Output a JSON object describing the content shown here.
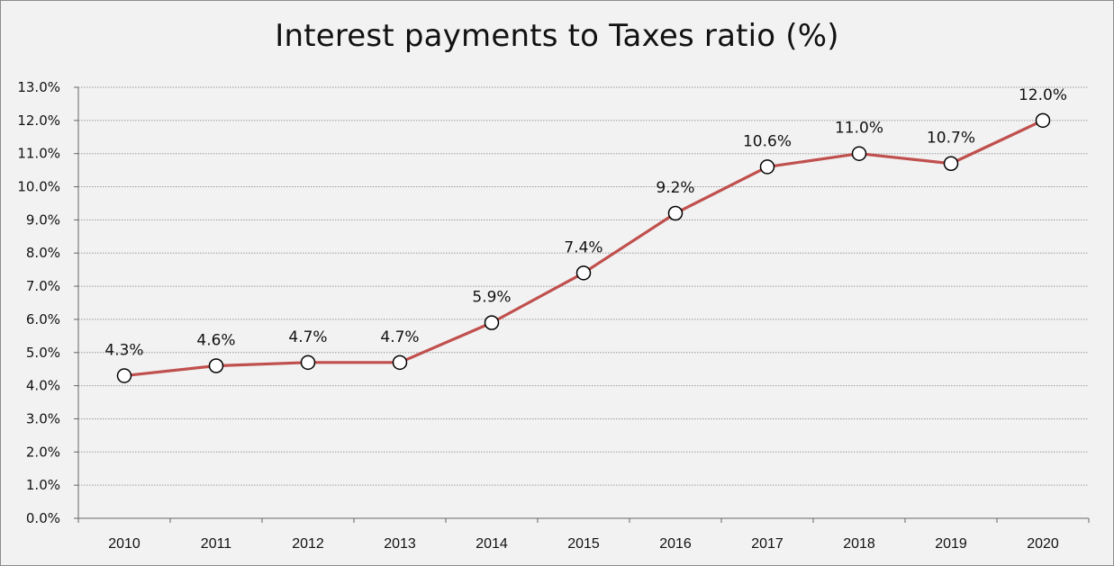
{
  "chart_data": {
    "type": "line",
    "title": "Interest payments to Taxes ratio (%)",
    "xlabel": "",
    "ylabel": "",
    "categories": [
      "2010",
      "2011",
      "2012",
      "2013",
      "2014",
      "2015",
      "2016",
      "2017",
      "2018",
      "2019",
      "2020"
    ],
    "series": [
      {
        "values": [
          4.3,
          4.6,
          4.7,
          4.7,
          5.9,
          7.4,
          9.2,
          10.6,
          11.0,
          10.7,
          12.0
        ],
        "data_labels": [
          "4.3%",
          "4.6%",
          "4.7%",
          "4.7%",
          "5.9%",
          "7.4%",
          "9.2%",
          "10.6%",
          "11.0%",
          "10.7%",
          "12.0%"
        ],
        "color": "#c0504d"
      }
    ],
    "ylim": [
      0,
      13
    ],
    "ytick_values": [
      0,
      1,
      2,
      3,
      4,
      5,
      6,
      7,
      8,
      9,
      10,
      11,
      12,
      13
    ],
    "ytick_labels": [
      "0.0%",
      "1.0%",
      "2.0%",
      "3.0%",
      "4.0%",
      "5.0%",
      "6.0%",
      "7.0%",
      "8.0%",
      "9.0%",
      "10.0%",
      "11.0%",
      "12.0%",
      "13.0%"
    ],
    "grid": true,
    "legend": "none",
    "colors": {
      "line": "#c0504d",
      "marker_fill": "#ffffff",
      "marker_stroke": "#000000",
      "grid": "#9a9a9a"
    }
  }
}
